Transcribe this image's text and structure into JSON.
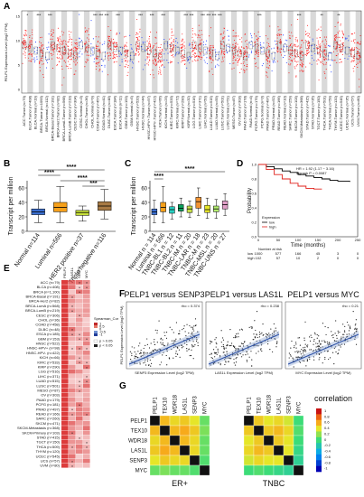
{
  "panels": {
    "A": {
      "label": "A",
      "ylabel": "PELP1 Expression Level (log2 TPM)",
      "yticks": [
        "15",
        "10",
        "5",
        "0"
      ],
      "categories": [
        "ACC Tumor (n=79)",
        "BLCA.Tumor (n=408)",
        "BLCA.Normal (n=19)",
        "BRCA.Tumor (n=1093)",
        "BRCA.Normal (n=112)",
        "BRCA-Basal.Tumor (n=191)",
        "BRCA-Her2.Tumor (n=82)",
        "BRCA-LumA.Tumor (n=568)",
        "BRCA-LumB.Tumor (n=219)",
        "CESC.Tumor (n=304)",
        "CESC.Normal (n=3)",
        "CHOL.Tumor (n=36)",
        "CHOL.Normal (n=9)",
        "COAD.Tumor (n=457)",
        "COAD.Normal (n=41)",
        "DLBC.Tumor (n=48)",
        "ESCA.Tumor (n=184)",
        "ESCA.Normal (n=11)",
        "GBM.Tumor (n=153)",
        "GBM.Normal (n=5)",
        "HNSC.Tumor (n=520)",
        "HNSC.Normal (n=44)",
        "HNSC-HPV+.Tumor (n=97)",
        "HNSC-HPV-.Tumor (n=422)",
        "KICH.Tumor (n=66)",
        "KICH.Normal (n=25)",
        "KIRC.Tumor (n=533)",
        "KIRC.Normal (n=72)",
        "KIRP.Tumor (n=290)",
        "KIRP.Normal (n=32)",
        "LGG.Tumor (n=516)",
        "LIHC.Tumor (n=371)",
        "LIHC.Normal (n=50)",
        "LUAD.Tumor (n=515)",
        "LUAD.Normal (n=59)",
        "LUSC.Tumor (n=501)",
        "LUSC.Normal (n=51)",
        "MESO.Tumor (n=87)",
        "OV.Tumor (n=303)",
        "PAAD.Tumor (n=178)",
        "PAAD.Normal (n=4)",
        "PCPG.Tumor (n=179)",
        "PCPG.Normal (n=3)",
        "PRAD.Tumor (n=497)",
        "PRAD.Normal (n=52)",
        "READ.Tumor (n=166)",
        "READ.Normal (n=10)",
        "SARC.Tumor (n=259)",
        "SKCM.Tumor (n=103)",
        "SKCM.Metastasis (n=368)",
        "STAD.Tumor (n=415)",
        "STAD.Normal (n=35)",
        "TGCT.Tumor (n=150)",
        "THCA.Tumor (n=501)",
        "THCA.Normal (n=59)",
        "THYM.Tumor (n=120)",
        "UCEC.Tumor (n=545)",
        "UCEC.Normal (n=35)",
        "UCS.Tumor (n=57)",
        "UVM.Tumor (n=80)"
      ],
      "stars": [
        "*",
        "",
        "***",
        "",
        "***",
        "",
        "",
        "",
        "",
        "",
        "",
        "",
        "***",
        "***",
        "***",
        "",
        "***",
        "",
        "",
        "",
        "***",
        "",
        "***",
        "",
        "***",
        "",
        "",
        "",
        "***",
        "***",
        "",
        "***",
        "***",
        "***",
        "***",
        "",
        "",
        "",
        "",
        "",
        "",
        "***",
        "",
        "",
        "",
        "",
        "",
        "",
        "***",
        "",
        "",
        "",
        "**",
        "",
        "",
        "**",
        "",
        "",
        "",
        ""
      ]
    },
    "B": {
      "label": "B",
      "ylabel": "Transcript per million",
      "yticks": [
        "0",
        "20",
        "40",
        "60"
      ],
      "categories": [
        "Normal\nn=114",
        "Luminal\nn=566",
        "HER2\npositive\nn=37",
        "Triple\nnegative\nn=116"
      ],
      "cat_names": [
        "Normal",
        "Luminal",
        "HER2 positive",
        "Triple negative"
      ],
      "cat_ns": [
        "n=114",
        "n=566",
        "n=37",
        "n=116"
      ],
      "sig": [
        "****",
        "****",
        "****",
        "***"
      ],
      "colors": [
        "#3b6fd1",
        "#f6a01a",
        "#c6e03a",
        "#a87a44"
      ],
      "chart_data": {
        "type": "box",
        "ylim": [
          0,
          70
        ],
        "boxes": [
          {
            "q1": 23,
            "median": 27,
            "q3": 31,
            "lo": 12,
            "hi": 43
          },
          {
            "q1": 27,
            "median": 33,
            "q3": 40,
            "lo": 12,
            "hi": 62
          },
          {
            "q1": 22,
            "median": 26,
            "q3": 29,
            "lo": 14,
            "hi": 35
          },
          {
            "q1": 29,
            "median": 35,
            "q3": 41,
            "lo": 17,
            "hi": 58
          }
        ]
      }
    },
    "C": {
      "label": "C",
      "ylabel": "Transcript per million",
      "yticks": [
        "0",
        "20",
        "40",
        "60"
      ],
      "cat_names": [
        "Normal",
        "Luminal",
        "TNBC-BL1",
        "TNBC-BL2",
        "TNBC-IM",
        "TNBC-LAR",
        "TNBC-M",
        "TNBC-MSL",
        "TNBC-UNS"
      ],
      "cat_ns": [
        "n = 114",
        "n = 566",
        "n = 12",
        "n = 11",
        "n = 20",
        "n = 18",
        "n = 23",
        "n = 20",
        "n = 27"
      ],
      "sig": [
        "****",
        "****"
      ],
      "colors": [
        "#3b6fd1",
        "#f6a01a",
        "#2bd1c2",
        "#0ba05c",
        "#c9e04b",
        "#f19334",
        "#e6e62a",
        "#b4f06f",
        "#e0a0c8"
      ],
      "chart_data": {
        "type": "box",
        "ylim": [
          0,
          70
        ],
        "boxes": [
          {
            "q1": 23,
            "median": 27,
            "q3": 31,
            "lo": 12,
            "hi": 43
          },
          {
            "q1": 27,
            "median": 33,
            "q3": 40,
            "lo": 12,
            "hi": 62
          },
          {
            "q1": 25,
            "median": 30,
            "q3": 34,
            "lo": 17,
            "hi": 40
          },
          {
            "q1": 28,
            "median": 32,
            "q3": 37,
            "lo": 20,
            "hi": 46
          },
          {
            "q1": 26,
            "median": 31,
            "q3": 35,
            "lo": 19,
            "hi": 42
          },
          {
            "q1": 32,
            "median": 41,
            "q3": 47,
            "lo": 22,
            "hi": 60
          },
          {
            "q1": 26,
            "median": 30,
            "q3": 36,
            "lo": 18,
            "hi": 46
          },
          {
            "q1": 27,
            "median": 31,
            "q3": 35,
            "lo": 18,
            "hi": 44
          },
          {
            "q1": 31,
            "median": 37,
            "q3": 42,
            "lo": 22,
            "hi": 52
          }
        ]
      }
    },
    "D": {
      "label": "D",
      "hr": "HR = 1.92 (1.17 − 3.16)",
      "logrank": "logrank P = 0.0087",
      "ylabel": "Probability",
      "xlabel": "Time (months)",
      "xticks": [
        "0",
        "50",
        "100",
        "150",
        "200",
        "250"
      ],
      "yticks": [
        "0.0",
        "0.2",
        "0.4",
        "0.6",
        "0.8",
        "1.0"
      ],
      "legend_title": "Expression",
      "legend_low": "low",
      "legend_high": "high",
      "risk_title": "Number at risk",
      "risk_low_label": "low",
      "risk_high_label": "high",
      "risk_low": [
        "1000",
        "577",
        "166",
        "45",
        "3",
        "0"
      ],
      "risk_high": [
        "102",
        "57",
        "10",
        "2",
        "0",
        "0"
      ],
      "colors": {
        "low": "#000000",
        "high": "#e0201b"
      },
      "chart_data": {
        "type": "line",
        "xlim": [
          0,
          250
        ],
        "ylim": [
          0,
          1
        ],
        "series": [
          {
            "name": "low",
            "x": [
              0,
              20,
              40,
              60,
              80,
              100,
              120,
              140,
              160,
              180,
              200,
              230
            ],
            "y": [
              1,
              0.97,
              0.94,
              0.91,
              0.89,
              0.86,
              0.84,
              0.82,
              0.8,
              0.78,
              0.77,
              0.76
            ]
          },
          {
            "name": "high",
            "x": [
              0,
              20,
              40,
              60,
              80,
              100,
              120,
              140,
              160
            ],
            "y": [
              1,
              0.93,
              0.86,
              0.8,
              0.74,
              0.7,
              0.67,
              0.66,
              0.66
            ]
          }
        ]
      }
    },
    "E": {
      "label": "E",
      "cols": [
        "PELP1",
        "LAS1L",
        "SENP3",
        "MYC"
      ],
      "rows": [
        "ACC (n=79)",
        "BLCA (n=408)",
        "BRCA (n=1,100)",
        "BRCA-Basal (n=191)",
        "BRCA-Her2 (n=82)",
        "BRCA-LumA (n=568)",
        "BRCA-LumB (n=219)",
        "CESC (n=306)",
        "CHOL (n=36)",
        "COAD (n=458)",
        "DLBC (n=48)",
        "ESCA (n=185)",
        "GBM (n=153)",
        "HNSC (n=522)",
        "HNSC-HPV+ (n=98)",
        "HNSC-HPV- (n=422)",
        "KICH (n=66)",
        "KIRC (n=533)",
        "KIRP (n=290)",
        "LGG (n=516)",
        "LIHC (n=371)",
        "LUAD (n=515)",
        "LUSC (n=501)",
        "MESO (n=87)",
        "OV (n=303)",
        "PAAD (n=179)",
        "PCPG (n=181)",
        "PRAD (n=497)",
        "READ (n=166)",
        "SARC (n=260)",
        "SKCM (n=471)",
        "SKCM-Metastasis (n=368)",
        "SKCM-Primary (n=103)",
        "STAD (n=415)",
        "TGCT (n=150)",
        "THCA (n=509)",
        "THYM (n=120)",
        "UCEC (n=545)",
        "UCS (n=57)",
        "UVM (n=80)"
      ],
      "legend_title": "Spearman_Cor",
      "legend_ticks": [
        "1",
        "0.5",
        "0",
        "-0.5",
        "-1"
      ],
      "sig_low": "p > 0.05",
      "sig_high": "p < 0.05"
    },
    "F": {
      "label": "F",
      "plots": [
        {
          "title": "PELP1 versus SENP3",
          "xlabel": "SENP3 Expression Level (log2 TPM)",
          "ylabel": "PELP1 Expression Level (log2 TPM)",
          "stat": "rho = 0.374"
        },
        {
          "title": "PELP1 versus LAS1L",
          "xlabel": "LAS1L Expression Level (log2 TPM)",
          "ylabel": "",
          "stat": "rho = 0.238"
        },
        {
          "title": "PELP1 versus MYC",
          "xlabel": "MYC Expression Level (log2 TPM)",
          "ylabel": "",
          "stat": "rho = 0.21"
        }
      ]
    },
    "G": {
      "label": "G",
      "genes": [
        "PELP1",
        "TEX10",
        "WDR18",
        "LAS1L",
        "SENP3",
        "MYC"
      ],
      "left_title": "ER+",
      "right_title": "TNBC",
      "legend_title": "correlation",
      "legend_ticks": [
        "1",
        "0.8",
        "0.6",
        "0.4",
        "0.2",
        "0",
        "-0.2",
        "-0.4",
        "-0.6",
        "-0.8",
        "-1"
      ],
      "er_matrix": [
        [
          1,
          0.55,
          0.45,
          0.5,
          0.4,
          0.1
        ],
        [
          0.55,
          1,
          0.55,
          0.6,
          0.5,
          0.15
        ],
        [
          0.45,
          0.55,
          1,
          0.55,
          0.45,
          0.1
        ],
        [
          0.5,
          0.6,
          0.55,
          1,
          0.45,
          0.1
        ],
        [
          0.4,
          0.5,
          0.45,
          0.45,
          1,
          0.05
        ],
        [
          0.1,
          0.15,
          0.1,
          0.1,
          0.05,
          1
        ]
      ],
      "tnbc_matrix": [
        [
          1,
          0.5,
          0.4,
          0.45,
          0.35,
          0.0
        ],
        [
          0.5,
          1,
          0.5,
          0.55,
          0.45,
          0.05
        ],
        [
          0.4,
          0.5,
          1,
          0.5,
          0.4,
          0.0
        ],
        [
          0.45,
          0.55,
          0.5,
          1,
          0.4,
          -0.05
        ],
        [
          0.35,
          0.45,
          0.4,
          0.4,
          1,
          -0.1
        ],
        [
          0.0,
          0.05,
          0.0,
          -0.05,
          -0.1,
          1
        ]
      ]
    }
  }
}
